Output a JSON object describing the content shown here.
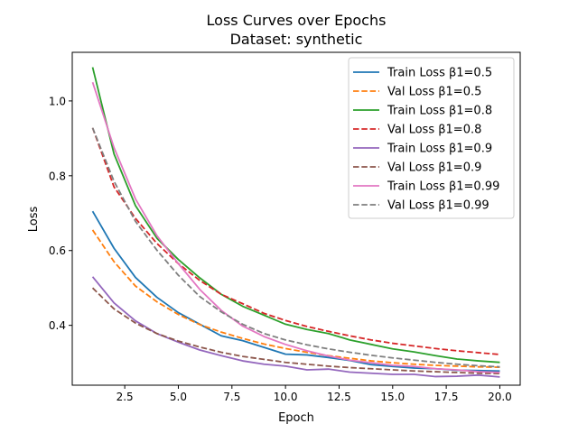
{
  "chart_data": {
    "type": "line",
    "title": "Loss Curves over Epochs",
    "subtitle": "Dataset: synthetic",
    "xlabel": "Epoch",
    "ylabel": "Loss",
    "xlim": [
      0.05,
      20.95
    ],
    "ylim": [
      0.24,
      1.13
    ],
    "xticks": [
      2.5,
      5.0,
      7.5,
      10.0,
      12.5,
      15.0,
      17.5,
      20.0
    ],
    "xtick_labels": [
      "2.5",
      "5.0",
      "7.5",
      "10.0",
      "12.5",
      "15.0",
      "17.5",
      "20.0"
    ],
    "yticks": [
      0.4,
      0.6,
      0.8,
      1.0
    ],
    "ytick_labels": [
      "0.4",
      "0.6",
      "0.8",
      "1.0"
    ],
    "grid": false,
    "legend_position": "upper-right",
    "x": [
      1,
      2,
      3,
      4,
      5,
      6,
      7,
      8,
      9,
      10,
      11,
      12,
      13,
      14,
      15,
      16,
      17,
      18,
      19,
      20
    ],
    "series": [
      {
        "name": "Train Loss β1=0.5",
        "color": "#1f77b4",
        "style": "solid",
        "values": [
          0.705,
          0.606,
          0.528,
          0.475,
          0.434,
          0.403,
          0.372,
          0.359,
          0.341,
          0.323,
          0.321,
          0.314,
          0.306,
          0.295,
          0.29,
          0.286,
          0.284,
          0.28,
          0.279,
          0.278
        ]
      },
      {
        "name": "Val Loss β1=0.5",
        "color": "#ff7f0e",
        "style": "dashed",
        "values": [
          0.655,
          0.57,
          0.505,
          0.463,
          0.429,
          0.402,
          0.382,
          0.365,
          0.35,
          0.338,
          0.328,
          0.319,
          0.312,
          0.305,
          0.3,
          0.296,
          0.293,
          0.291,
          0.289,
          0.288
        ]
      },
      {
        "name": "Train Loss β1=0.8",
        "color": "#2ca02c",
        "style": "solid",
        "values": [
          1.09,
          0.858,
          0.72,
          0.633,
          0.576,
          0.527,
          0.483,
          0.451,
          0.427,
          0.403,
          0.389,
          0.378,
          0.361,
          0.349,
          0.337,
          0.329,
          0.319,
          0.31,
          0.305,
          0.301
        ]
      },
      {
        "name": "Val Loss β1=0.8",
        "color": "#d62728",
        "style": "dashed",
        "values": [
          0.928,
          0.77,
          0.686,
          0.619,
          0.565,
          0.52,
          0.483,
          0.458,
          0.432,
          0.413,
          0.397,
          0.384,
          0.372,
          0.361,
          0.352,
          0.345,
          0.338,
          0.332,
          0.327,
          0.322
        ]
      },
      {
        "name": "Train Loss β1=0.9",
        "color": "#9467bd",
        "style": "solid",
        "values": [
          0.53,
          0.46,
          0.412,
          0.378,
          0.355,
          0.334,
          0.319,
          0.305,
          0.296,
          0.291,
          0.281,
          0.283,
          0.275,
          0.272,
          0.269,
          0.269,
          0.263,
          0.264,
          0.267,
          0.262
        ]
      },
      {
        "name": "Val Loss β1=0.9",
        "color": "#8c564b",
        "style": "dashed",
        "values": [
          0.5,
          0.444,
          0.406,
          0.378,
          0.358,
          0.342,
          0.328,
          0.317,
          0.309,
          0.301,
          0.296,
          0.291,
          0.287,
          0.284,
          0.281,
          0.278,
          0.276,
          0.274,
          0.272,
          0.271
        ]
      },
      {
        "name": "Train Loss β1=0.99",
        "color": "#e377c2",
        "style": "solid",
        "values": [
          1.05,
          0.875,
          0.738,
          0.64,
          0.565,
          0.496,
          0.44,
          0.398,
          0.37,
          0.349,
          0.332,
          0.318,
          0.307,
          0.3,
          0.293,
          0.29,
          0.284,
          0.281,
          0.276,
          0.274
        ]
      },
      {
        "name": "Val Loss β1=0.99",
        "color": "#7f7f7f",
        "style": "dashed",
        "values": [
          0.928,
          0.785,
          0.678,
          0.601,
          0.534,
          0.477,
          0.436,
          0.403,
          0.378,
          0.361,
          0.348,
          0.337,
          0.328,
          0.32,
          0.313,
          0.307,
          0.301,
          0.296,
          0.292,
          0.289
        ]
      }
    ]
  }
}
